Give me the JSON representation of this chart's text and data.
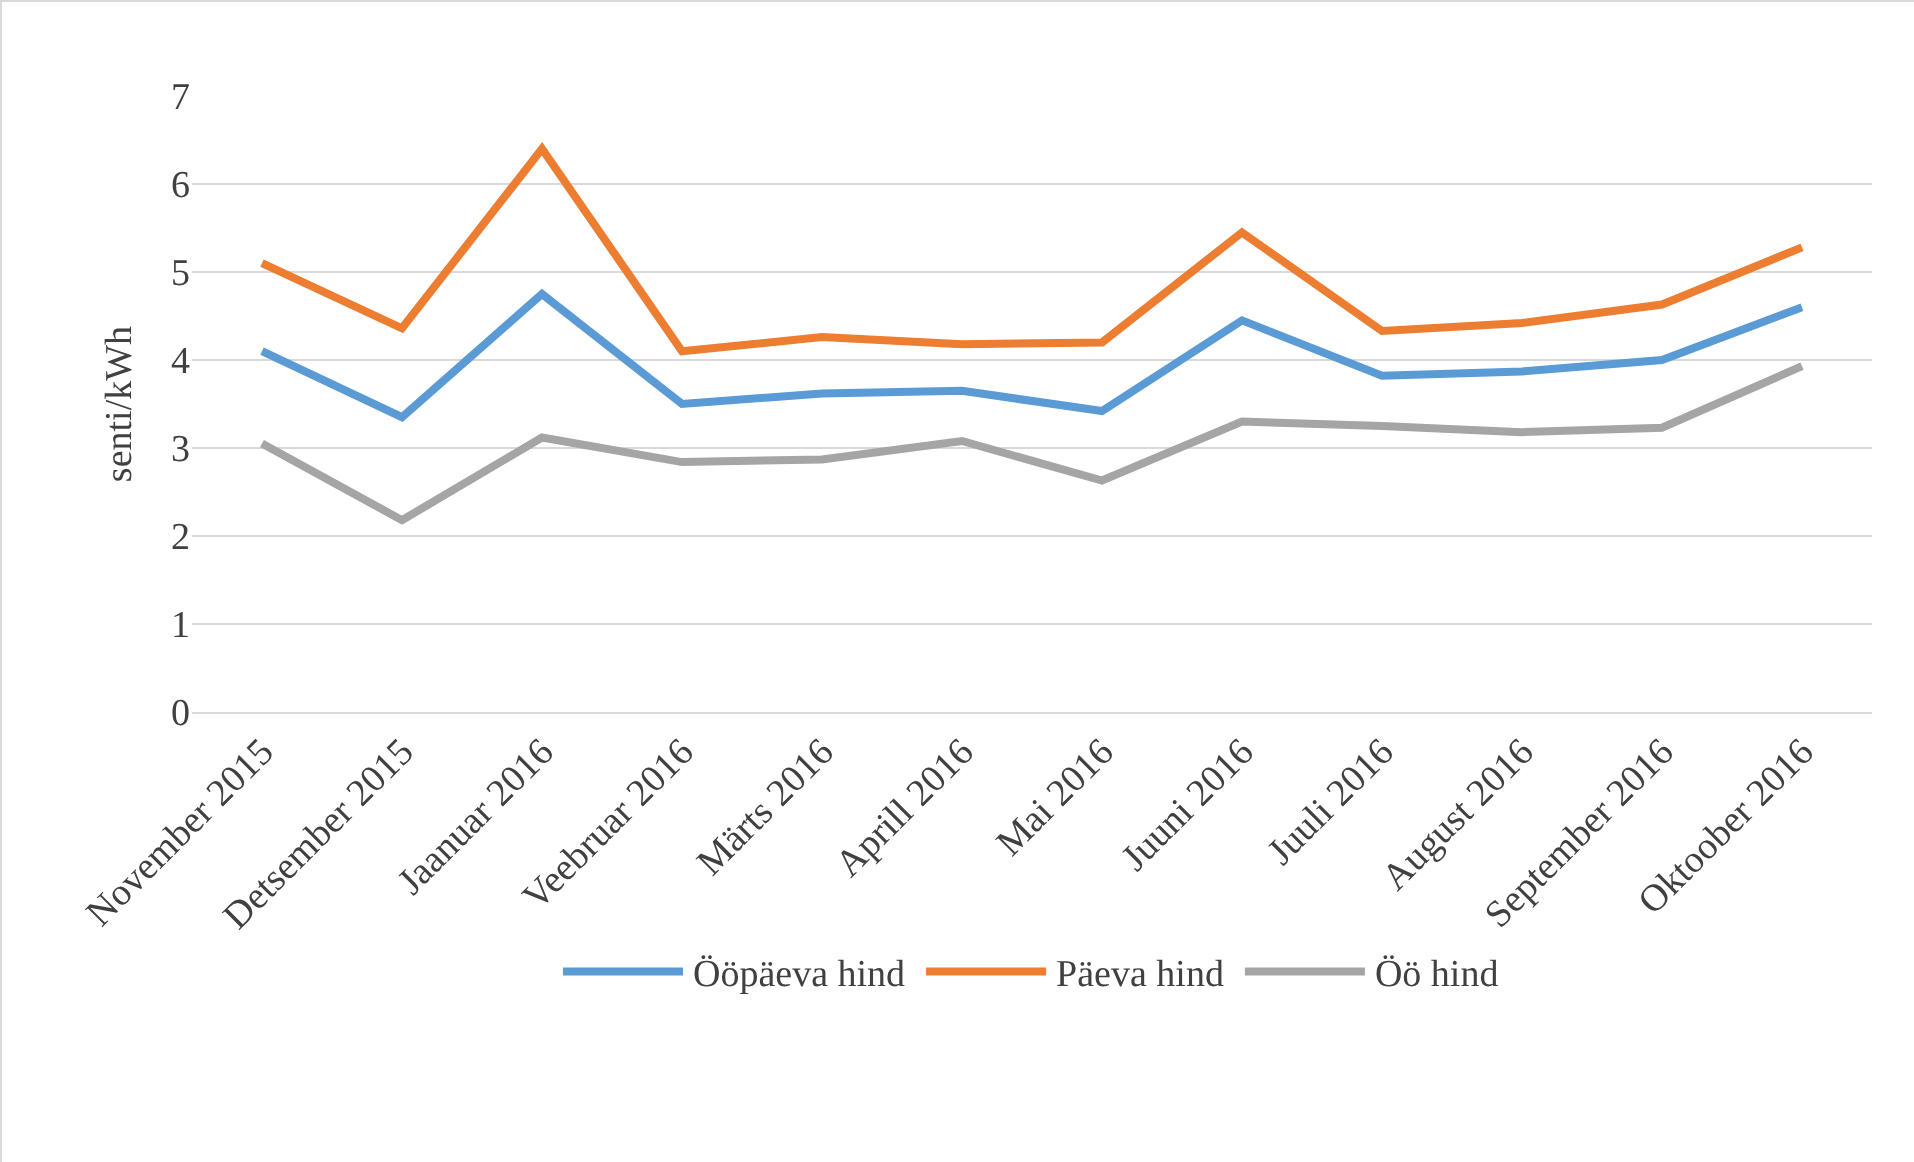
{
  "chart_data": {
    "type": "line",
    "ylabel": "senti/kWh",
    "categories": [
      "November 2015",
      "Detsember 2015",
      "Jaanuar 2016",
      "Veebruar 2016",
      "Märts 2016",
      "Aprill 2016",
      "Mai 2016",
      "Juuni 2016",
      "Juuli 2016",
      "August 2016",
      "September 2016",
      "Oktoober 2016"
    ],
    "series": [
      {
        "name": "Ööpäeva hind",
        "color": "#5b9bd5",
        "values": [
          4.1,
          3.35,
          4.75,
          3.5,
          3.62,
          3.65,
          3.42,
          4.45,
          3.82,
          3.87,
          4.0,
          4.6
        ]
      },
      {
        "name": "Päeva hind",
        "color": "#ed7d31",
        "values": [
          5.1,
          4.36,
          6.4,
          4.1,
          4.26,
          4.18,
          4.2,
          5.45,
          4.33,
          4.42,
          4.63,
          5.28
        ]
      },
      {
        "name": "Öö hind",
        "color": "#a5a5a5",
        "values": [
          3.05,
          2.18,
          3.12,
          2.84,
          2.87,
          3.08,
          2.63,
          3.3,
          3.25,
          3.18,
          3.23,
          3.93
        ]
      }
    ],
    "ylim": [
      0,
      7
    ],
    "yticks": [
      0,
      1,
      2,
      3,
      4,
      5,
      6,
      7
    ],
    "grid": "y",
    "legend": "bottom",
    "marker": "none",
    "line_style": "solid"
  }
}
